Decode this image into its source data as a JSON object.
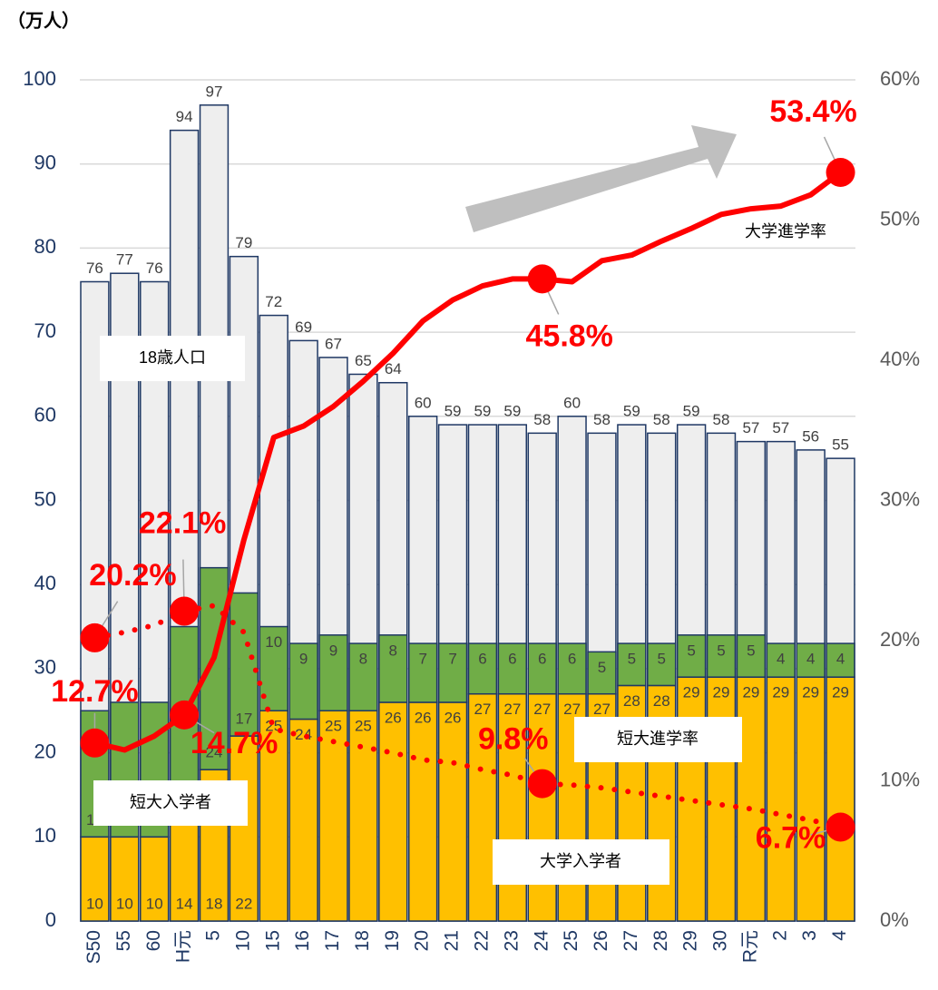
{
  "chart_data": {
    "type": "bar",
    "unit_label": "（万人）",
    "categories": [
      "S50",
      "55",
      "60",
      "H元",
      "5",
      "10",
      "15",
      "16",
      "17",
      "18",
      "19",
      "20",
      "21",
      "22",
      "23",
      "24",
      "25",
      "26",
      "27",
      "28",
      "29",
      "30",
      "R元",
      "2",
      "3",
      "4"
    ],
    "ylim": [
      0,
      100
    ],
    "yticks": [
      0,
      10,
      20,
      30,
      40,
      50,
      60,
      70,
      80,
      90,
      100
    ],
    "y2lim": [
      0,
      60
    ],
    "y2ticks": [
      {
        "value": 0,
        "label": "0%"
      },
      {
        "value": 10,
        "label": "10%"
      },
      {
        "value": 20,
        "label": "20%"
      },
      {
        "value": 30,
        "label": "30%"
      },
      {
        "value": 40,
        "label": "40%"
      },
      {
        "value": 50,
        "label": "50%"
      },
      {
        "value": 60,
        "label": "60%"
      }
    ],
    "grid": true,
    "series": [
      {
        "name": "18歳人口",
        "kind": "total",
        "color": "#eeeeee",
        "values": [
          76,
          77,
          76,
          94,
          97,
          79,
          72,
          69,
          67,
          65,
          64,
          60,
          59,
          59,
          59,
          58,
          60,
          58,
          59,
          58,
          59,
          58,
          57,
          57,
          56,
          55
        ]
      },
      {
        "name": "大学入学者",
        "kind": "stack",
        "color": "#ffc000",
        "values": [
          10,
          10,
          10,
          14,
          18,
          22,
          25,
          24,
          25,
          25,
          26,
          26,
          26,
          27,
          27,
          27,
          27,
          27,
          28,
          28,
          29,
          29,
          29,
          29,
          29,
          29
        ]
      },
      {
        "name": "短大入学者",
        "kind": "stack",
        "color": "#70ad47",
        "values": [
          15,
          16,
          16,
          21,
          24,
          17,
          10,
          9,
          9,
          8,
          8,
          7,
          7,
          6,
          6,
          6,
          6,
          5,
          5,
          5,
          5,
          5,
          5,
          4,
          4,
          4
        ]
      },
      {
        "name": "大学進学率",
        "kind": "line",
        "axis": "y2",
        "color": "#ff0000",
        "dash": false,
        "values": [
          12.7,
          12.2,
          13.2,
          14.7,
          18.8,
          27.2,
          34.5,
          35.3,
          36.7,
          38.5,
          40.5,
          42.8,
          44.3,
          45.3,
          45.8,
          45.8,
          45.6,
          47.1,
          47.5,
          48.5,
          49.4,
          50.4,
          50.8,
          51.0,
          51.8,
          53.4
        ],
        "value_labels": [
          "12.7%",
          null,
          null,
          "14.7%",
          null,
          null,
          null,
          null,
          null,
          null,
          null,
          null,
          null,
          null,
          null,
          "45.8%",
          null,
          null,
          null,
          null,
          null,
          null,
          null,
          null,
          null,
          "53.4%"
        ]
      },
      {
        "name": "短大進学率",
        "kind": "line",
        "axis": "y2",
        "color": "#ff0000",
        "dash": true,
        "values": [
          20.2,
          20.6,
          21.1,
          22.1,
          22.5,
          20.6,
          13.7,
          13.2,
          12.8,
          12.4,
          12.0,
          11.5,
          11.3,
          10.8,
          10.4,
          9.8,
          9.7,
          9.5,
          9.2,
          8.9,
          8.6,
          8.3,
          8.0,
          7.6,
          7.2,
          6.7
        ],
        "value_labels": [
          "20.2%",
          null,
          null,
          "22.1%",
          null,
          null,
          null,
          null,
          null,
          null,
          null,
          null,
          null,
          null,
          null,
          "9.8%",
          null,
          null,
          null,
          null,
          null,
          null,
          null,
          null,
          null,
          "6.7%"
        ]
      }
    ]
  }
}
